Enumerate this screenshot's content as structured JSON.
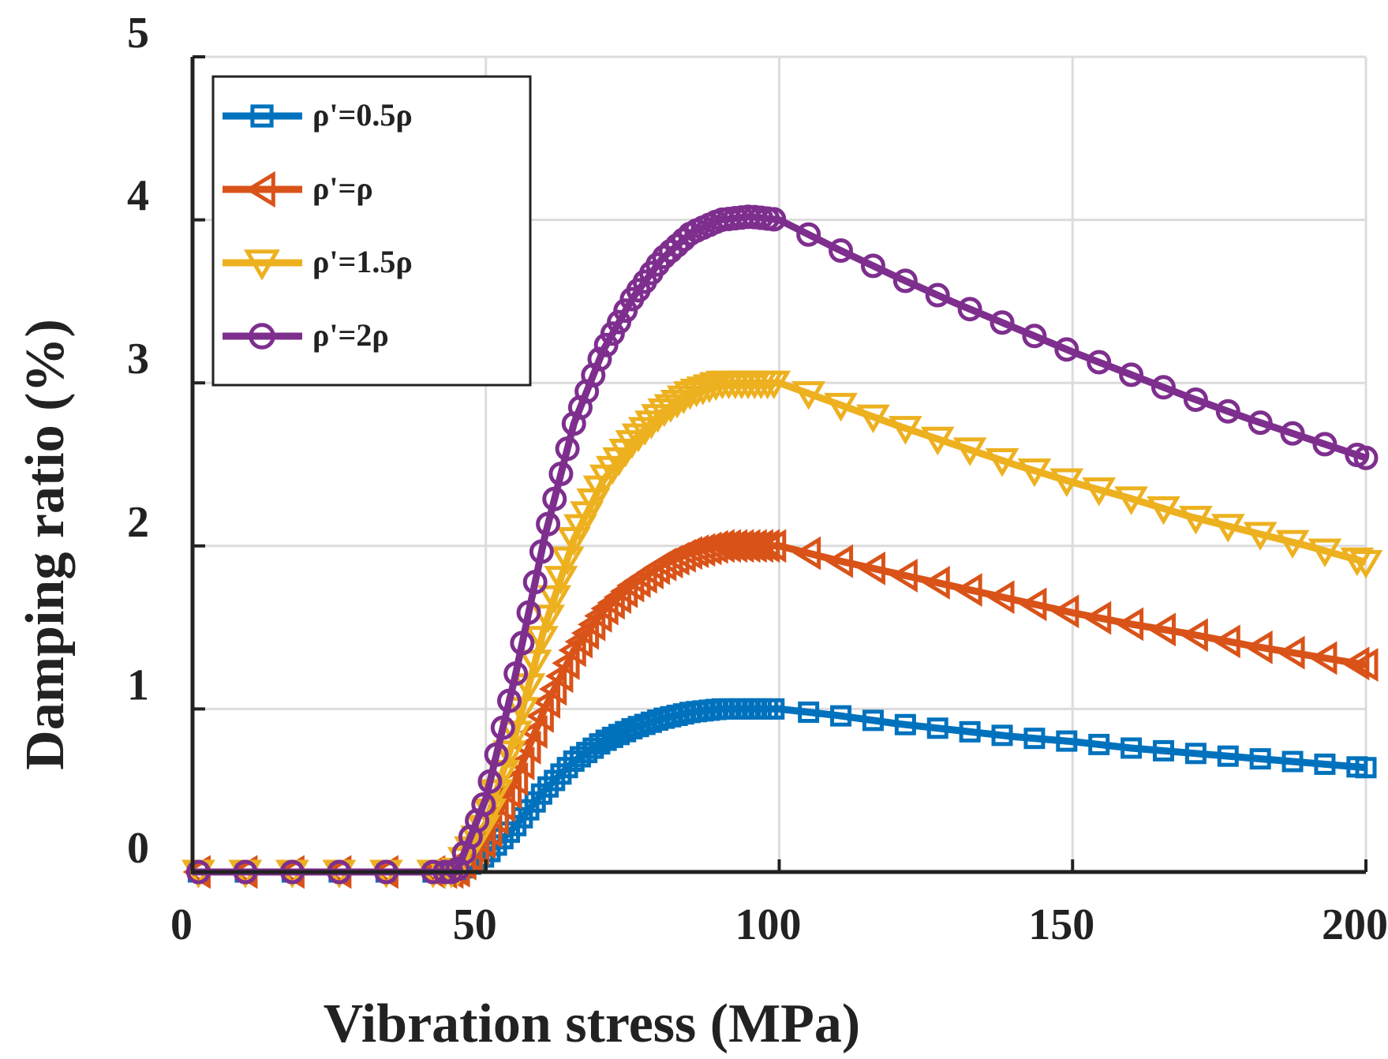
{
  "chart_data": {
    "type": "line",
    "title": "",
    "xlabel": "Vibration stress (MPa)",
    "ylabel": "Damping ratio (%)",
    "xlim": [
      0,
      200
    ],
    "ylim": [
      0,
      5
    ],
    "xticks": [
      0,
      50,
      100,
      150,
      200
    ],
    "yticks": [
      0,
      1,
      2,
      3,
      4,
      5
    ],
    "grid": true,
    "legend_position": "top-left",
    "x": [
      0,
      10,
      20,
      30,
      40,
      45,
      50,
      55,
      60,
      65,
      70,
      75,
      80,
      85,
      90,
      95,
      100,
      110,
      120,
      130,
      140,
      150,
      160,
      170,
      180,
      190,
      200
    ],
    "series": [
      {
        "name": "ρ'=0.5ρ",
        "color": "#0072BD",
        "marker": "square",
        "values": [
          0,
          0,
          0,
          0,
          0,
          0,
          0.1,
          0.28,
          0.5,
          0.68,
          0.8,
          0.88,
          0.94,
          0.98,
          1.0,
          1.0,
          1.0,
          0.96,
          0.91,
          0.87,
          0.83,
          0.8,
          0.76,
          0.73,
          0.7,
          0.67,
          0.64
        ]
      },
      {
        "name": "ρ'=ρ",
        "color": "#D95319",
        "marker": "triangle-left",
        "values": [
          0,
          0,
          0,
          0,
          0,
          0,
          0.2,
          0.56,
          1.0,
          1.36,
          1.6,
          1.76,
          1.88,
          1.96,
          2.0,
          2.0,
          2.0,
          1.91,
          1.83,
          1.75,
          1.67,
          1.59,
          1.52,
          1.46,
          1.39,
          1.33,
          1.27
        ]
      },
      {
        "name": "ρ'=1.5ρ",
        "color": "#EDB120",
        "marker": "triangle-down",
        "values": [
          0,
          0,
          0,
          0,
          0,
          0,
          0.3,
          0.84,
          1.5,
          2.04,
          2.4,
          2.64,
          2.82,
          2.94,
          3.0,
          3.0,
          3.0,
          2.87,
          2.74,
          2.62,
          2.5,
          2.39,
          2.29,
          2.18,
          2.09,
          2.0,
          1.9
        ]
      },
      {
        "name": "ρ'=2ρ",
        "color": "#7E2F8E",
        "marker": "circle",
        "values": [
          0,
          0,
          0,
          0,
          0,
          0,
          0.45,
          1.2,
          2.05,
          2.75,
          3.2,
          3.52,
          3.76,
          3.92,
          4.0,
          4.02,
          4.0,
          3.82,
          3.65,
          3.49,
          3.34,
          3.19,
          3.05,
          2.91,
          2.78,
          2.66,
          2.54
        ]
      }
    ]
  }
}
